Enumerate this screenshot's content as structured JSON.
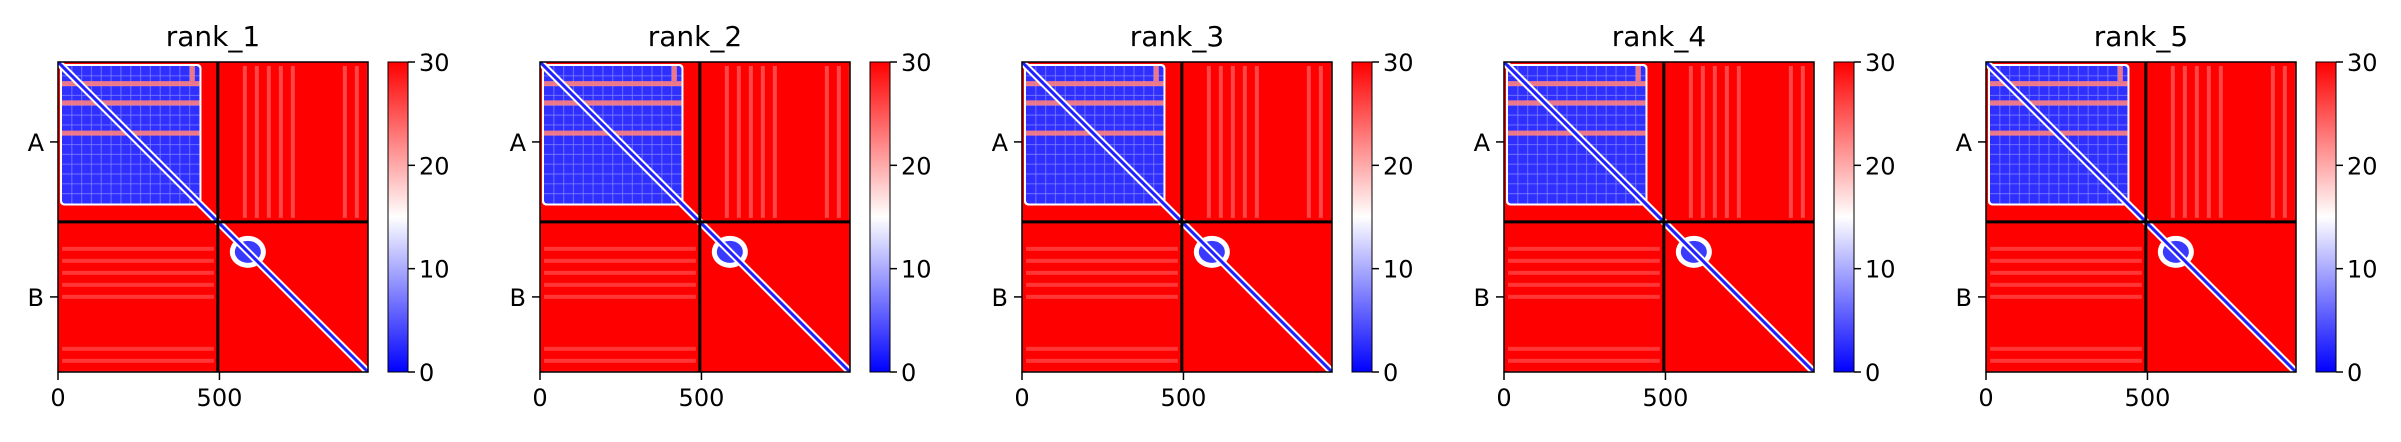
{
  "chart_data": {
    "type": "heatmap",
    "colormap": {
      "name": "bwr",
      "low": "#0000ff",
      "mid": "#ffffff",
      "high": "#ff0000"
    },
    "clim": [
      0,
      30
    ],
    "colorbar_ticks": [
      "0",
      "10",
      "20",
      "30"
    ],
    "xlim": [
      0,
      960
    ],
    "x_ticks": [
      {
        "value": 0,
        "label": "0"
      },
      {
        "value": 500,
        "label": "500"
      }
    ],
    "chain_labels": [
      "A",
      "B"
    ],
    "chain_boundary": 495,
    "plots": [
      {
        "title": "rank_1"
      },
      {
        "title": "rank_2"
      },
      {
        "title": "rank_3"
      },
      {
        "title": "rank_4"
      },
      {
        "title": "rank_5"
      }
    ]
  }
}
